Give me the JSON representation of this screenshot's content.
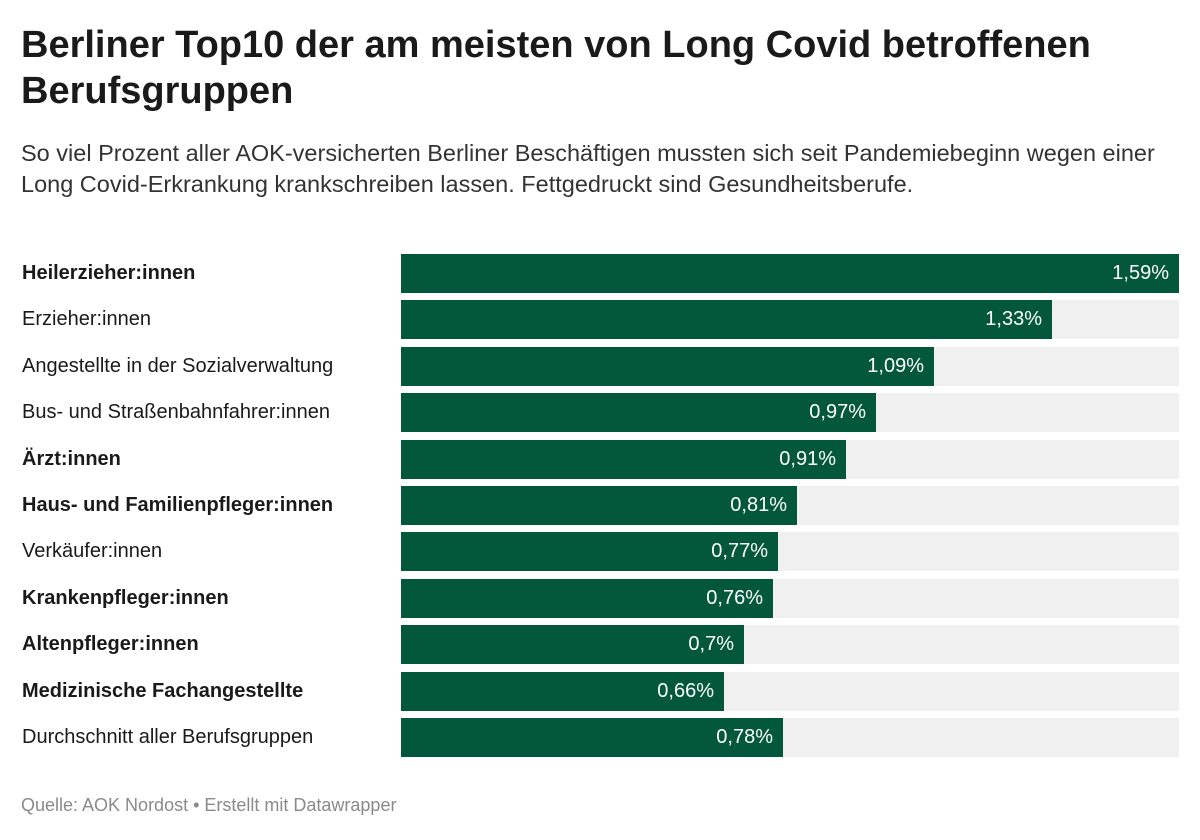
{
  "header": {
    "title": "Berliner Top10 der am meisten von Long Covid betroffenen Berufsgruppen",
    "subtitle": "So viel Prozent aller AOK-versicherten Berliner Beschäftigen mussten sich seit Pandemiebeginn wegen einer Long Covid-Erkrankung krankschreiben lassen. Fettgedruckt sind Gesundheitsberufe."
  },
  "footer": {
    "source": "Quelle: AOK Nordost • Erstellt mit Datawrapper"
  },
  "colors": {
    "bar": "#03573a",
    "track": "#f0f0f0",
    "value_text": "#ffffff"
  },
  "chart_data": {
    "type": "bar",
    "orientation": "horizontal",
    "categories": [
      "Heilerzieher:innen",
      "Erzieher:innen",
      "Angestellte in der Sozialverwaltung",
      "Bus- und Straßenbahnfahrer:innen",
      "Ärzt:innen",
      "Haus- und Familienpfleger:innen",
      "Verkäufer:innen",
      "Krankenpfleger:innen",
      "Altenpfleger:innen",
      "Medizinische Fachangestellte",
      "Durchschnitt aller Berufsgruppen"
    ],
    "values": [
      1.59,
      1.33,
      1.09,
      0.97,
      0.91,
      0.81,
      0.77,
      0.76,
      0.7,
      0.66,
      0.78
    ],
    "value_labels": [
      "1,59%",
      "1,33%",
      "1,09%",
      "0,97%",
      "0,91%",
      "0,81%",
      "0,77%",
      "0,76%",
      "0,7%",
      "0,66%",
      "0,78%"
    ],
    "bold": [
      true,
      false,
      false,
      false,
      true,
      true,
      false,
      true,
      true,
      true,
      false
    ],
    "xlim": [
      0,
      1.59
    ],
    "grid": false
  }
}
